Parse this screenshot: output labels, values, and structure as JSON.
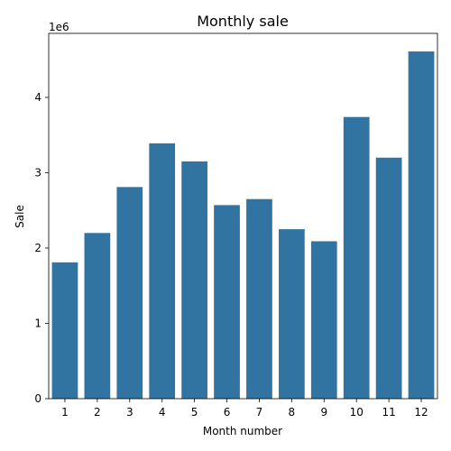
{
  "chart_data": {
    "type": "bar",
    "title": "Monthly sale",
    "xlabel": "Month number",
    "ylabel": "Sale",
    "y_offset_label": "1e6",
    "categories": [
      "1",
      "2",
      "3",
      "4",
      "5",
      "6",
      "7",
      "8",
      "9",
      "10",
      "11",
      "12"
    ],
    "values": [
      1810000,
      2200000,
      2810000,
      3390000,
      3150000,
      2570000,
      2650000,
      2250000,
      2090000,
      3740000,
      3200000,
      4610000
    ],
    "ylim": [
      0,
      4850000
    ],
    "yticks": [
      0,
      1000000,
      2000000,
      3000000,
      4000000
    ],
    "ytick_labels": [
      "0",
      "1",
      "2",
      "3",
      "4"
    ],
    "grid": false,
    "bar_color": "#3274a1"
  }
}
